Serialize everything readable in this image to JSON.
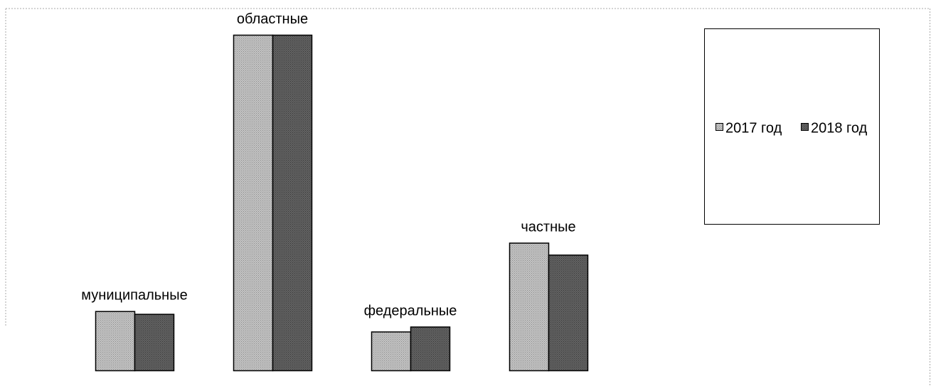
{
  "chart_data": {
    "type": "bar",
    "categories": [
      "муниципальные",
      "областные",
      "федеральные",
      "частные"
    ],
    "series": [
      {
        "name": "2017 год",
        "values": [
          84,
          476,
          55,
          181
        ]
      },
      {
        "name": "2018 год",
        "values": [
          80,
          476,
          62,
          164
        ]
      }
    ],
    "ylim": [
      0,
      480
    ],
    "grid": false,
    "legend_position": "right",
    "colors": {
      "2017 год": "#b4b4b4",
      "2018 год": "#585858"
    },
    "bar_stroke": "#000000"
  }
}
